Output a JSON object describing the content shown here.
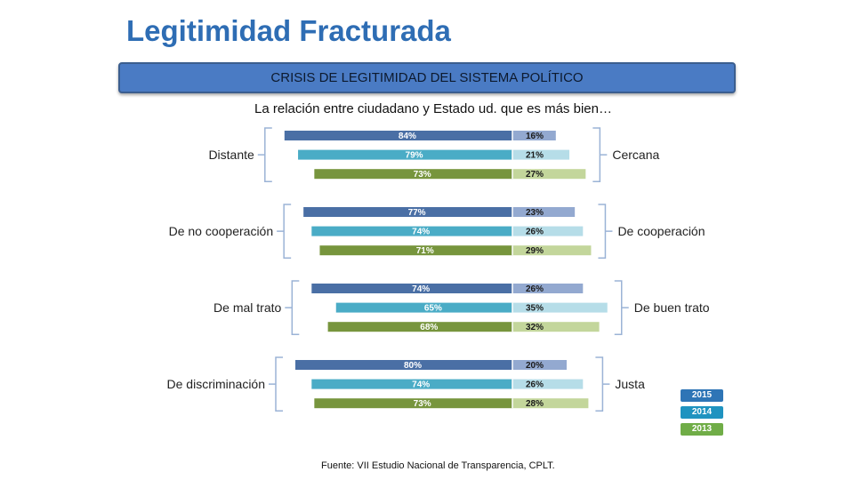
{
  "title": "Legitimidad Fracturada",
  "banner": "CRISIS DE LEGITIMIDAD DEL SISTEMA POLÍTICO",
  "subtitle": "La relación entre ciudadano y Estado ud. que es más bien…",
  "source": "Fuente: VII Estudio Nacional de Transparencia, CPLT.",
  "colors": {
    "2015": {
      "left": "#4a6fa5",
      "right": "#93a9d0"
    },
    "2014": {
      "left": "#4aacc6",
      "right": "#b6dde8"
    },
    "2013": {
      "left": "#77953d",
      "right": "#c3d69b"
    }
  },
  "legend": [
    {
      "label": "2015",
      "color": "#2e75b6"
    },
    {
      "label": "2014",
      "color": "#1f93c0"
    },
    {
      "label": "2013",
      "color": "#70ad47"
    }
  ],
  "chart_data": {
    "type": "bar",
    "orientation": "horizontal-diverging",
    "title": "La relación entre ciudadano y Estado ud. que es más bien…",
    "unit": "%",
    "series_names": [
      "2015",
      "2014",
      "2013"
    ],
    "groups": [
      {
        "left_label": "Distante",
        "right_label": "Cercana",
        "left": [
          84,
          79,
          73
        ],
        "right": [
          16,
          21,
          27
        ]
      },
      {
        "left_label": "De no cooperación",
        "right_label": "De cooperación",
        "left": [
          77,
          74,
          71
        ],
        "right": [
          23,
          26,
          29
        ]
      },
      {
        "left_label": "De mal trato",
        "right_label": "De buen trato",
        "left": [
          74,
          65,
          68
        ],
        "right": [
          26,
          35,
          32
        ]
      },
      {
        "left_label": "De discriminación",
        "right_label": "Justa",
        "left": [
          80,
          74,
          73
        ],
        "right": [
          20,
          26,
          28
        ]
      }
    ]
  }
}
